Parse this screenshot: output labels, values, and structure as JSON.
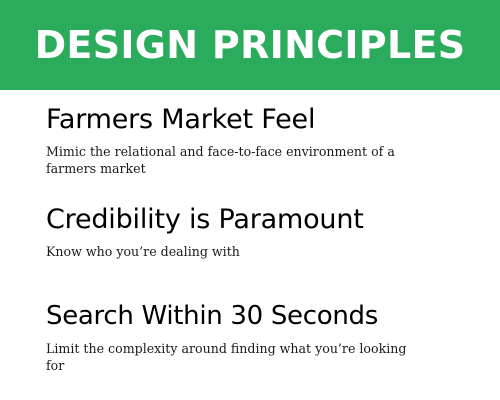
{
  "banner": {
    "title": "DESIGN PRINCIPLES",
    "background_color": "#2bac5c",
    "text_color": "#ffffff"
  },
  "principles": [
    {
      "heading": "Farmers Market Feel",
      "description": "Mimic the relational and face-to-face environment of a farmers market"
    },
    {
      "heading": "Credibility is Paramount",
      "description": "Know who you’re dealing with"
    },
    {
      "heading": "Search Within 30 Seconds",
      "description": "Limit the complexity around finding what you’re looking for"
    }
  ]
}
